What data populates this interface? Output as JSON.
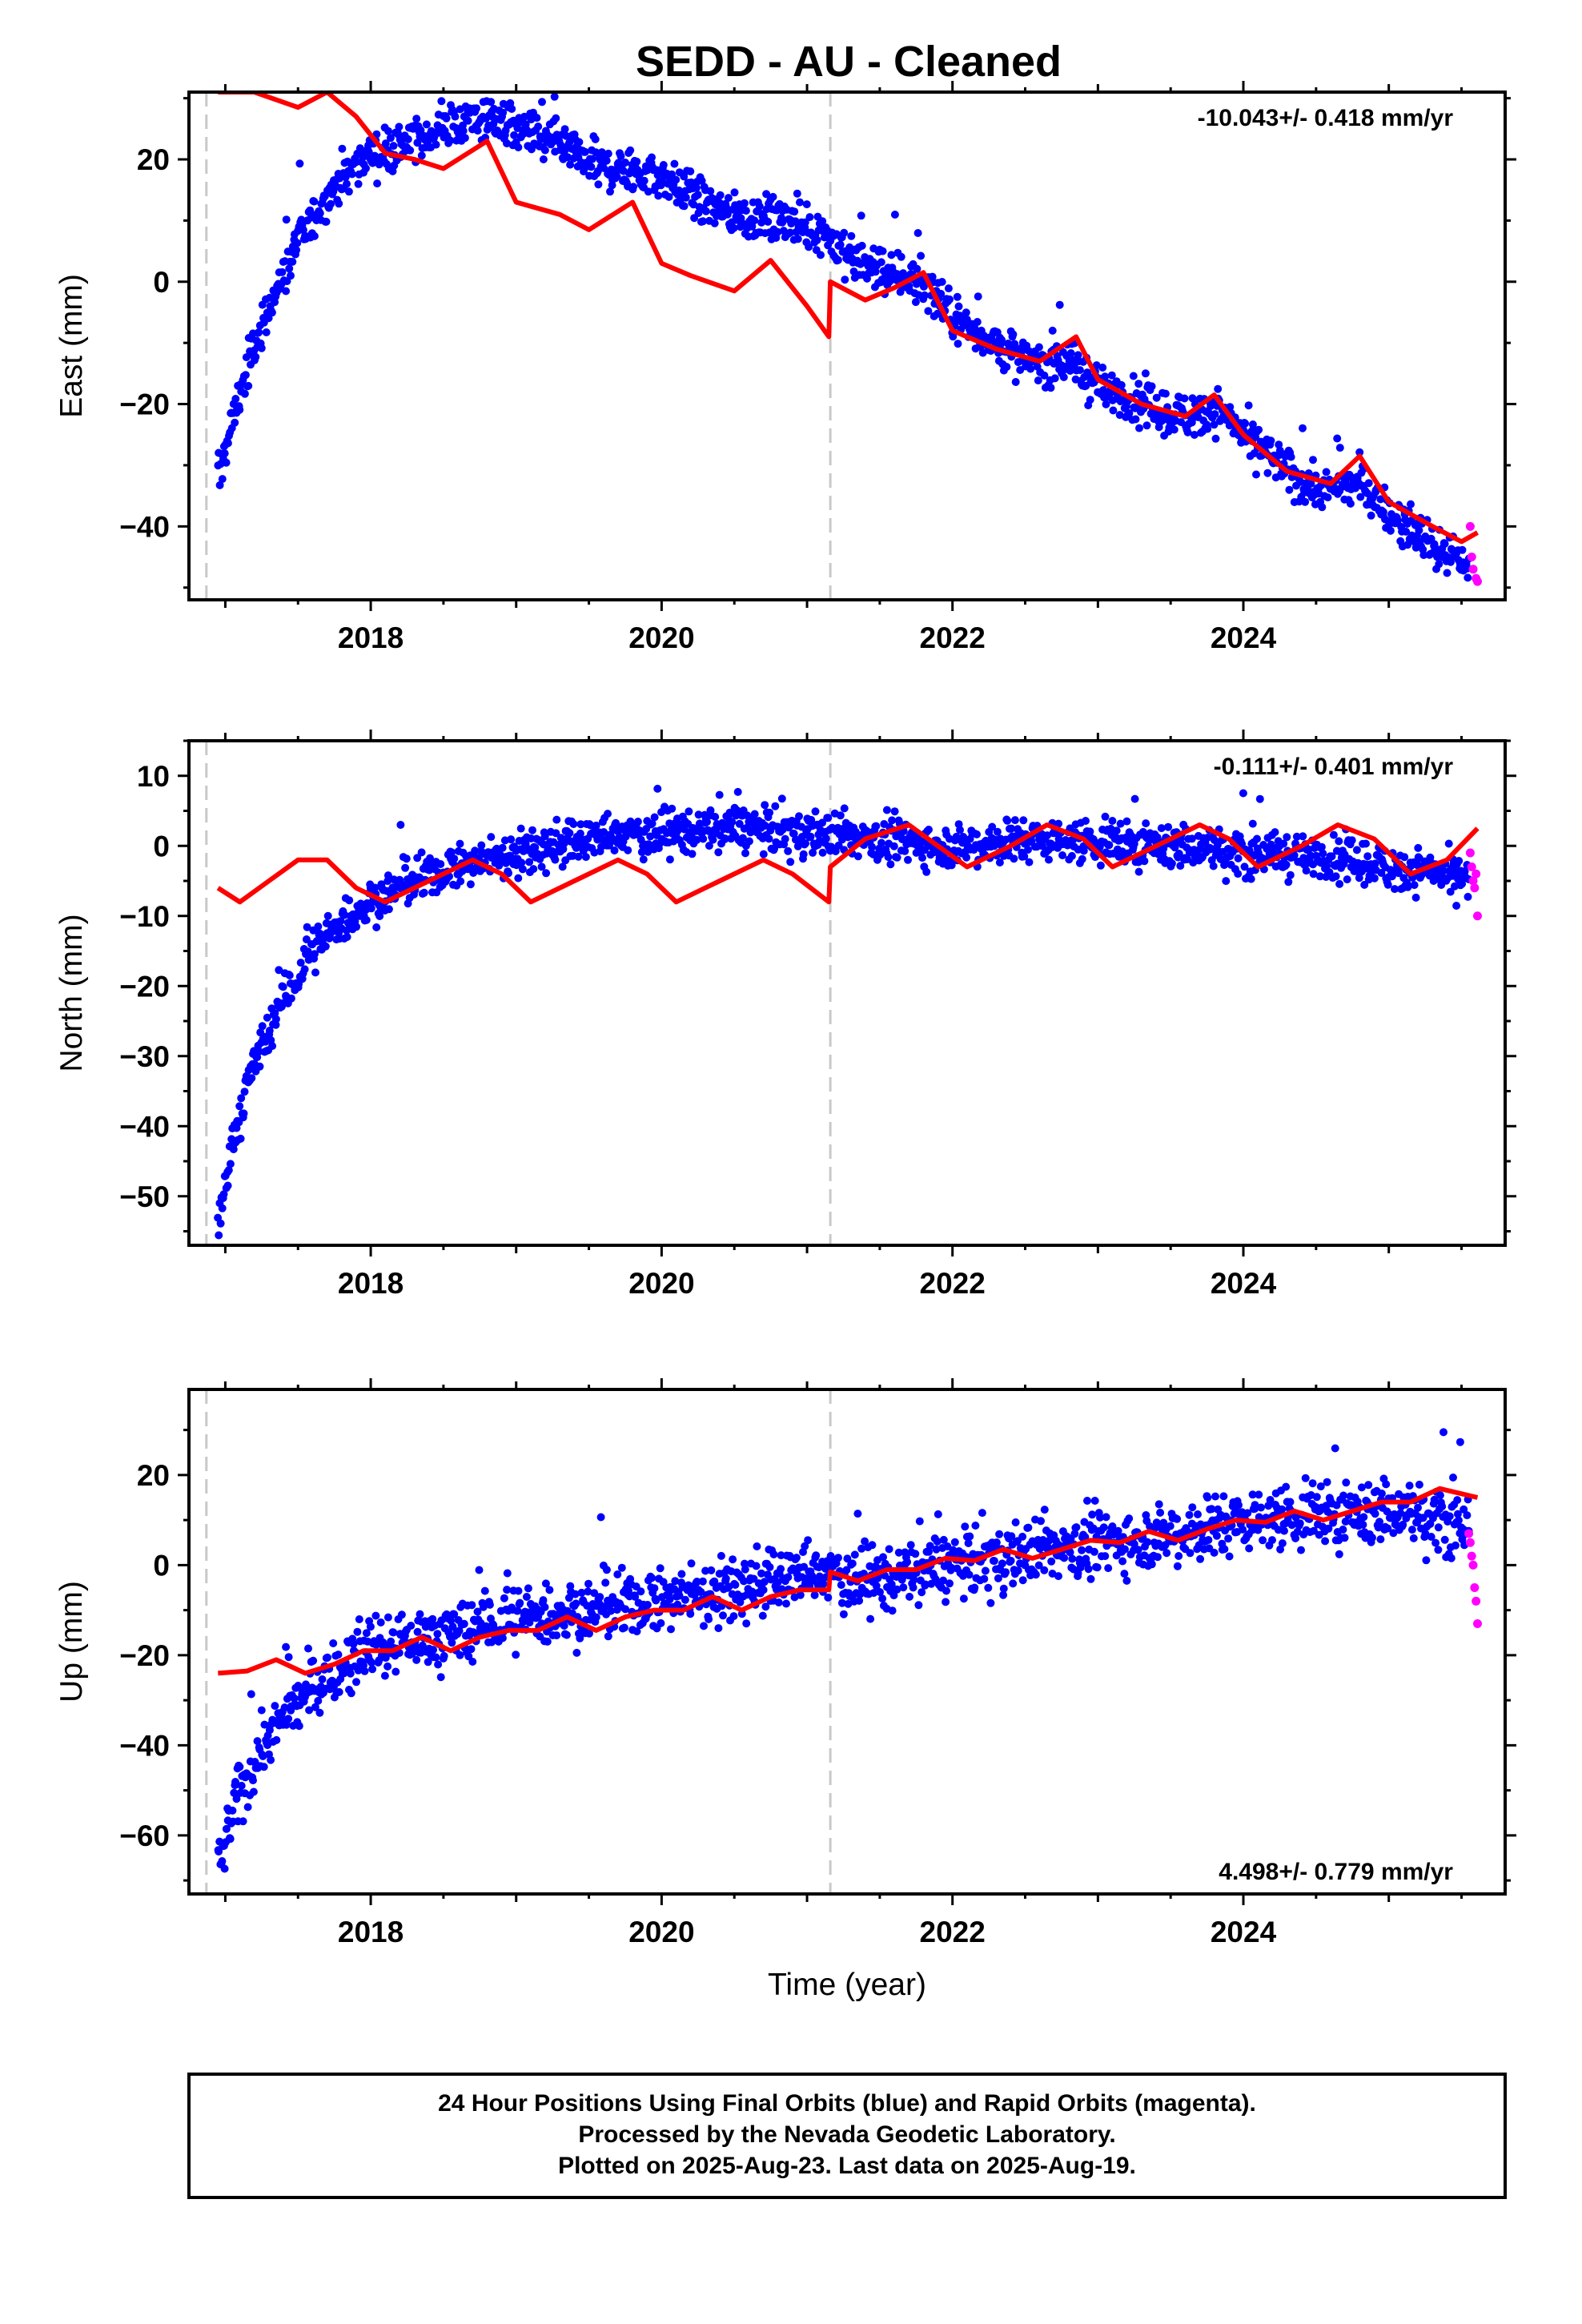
{
  "title": "SEDD  - AU - Cleaned",
  "colors": {
    "final": "#0000ff",
    "rapid": "#ff00ff",
    "model": "#ff0000",
    "step_line": "#c8c8c8",
    "frame": "#000000"
  },
  "caption": {
    "line1": "24 Hour Positions Using Final Orbits (blue) and Rapid Orbits (magenta).",
    "line2": "Processed by the Nevada Geodetic Laboratory.",
    "line3": "Plotted on 2025-Aug-23. Last data on 2025-Aug-19."
  },
  "chart_data": [
    {
      "type": "scatter",
      "component": "east",
      "ylabel": "East (mm)",
      "xlabel": "",
      "rate": "-10.043+/- 0.418 mm/yr",
      "rate_position": "top-right",
      "xlim": [
        2016.75,
        2025.8
      ],
      "ylim": [
        -52,
        31
      ],
      "xticks": [
        2018,
        2020,
        2022,
        2024
      ],
      "yticks": [
        -40,
        -20,
        0,
        20
      ],
      "step_lines": [
        2016.87,
        2021.16
      ],
      "trend": {
        "x": [
          2016.95,
          2017.1,
          2017.3,
          2017.5,
          2017.7,
          2018.0,
          2018.3,
          2018.5,
          2018.8,
          2019.0,
          2019.3,
          2019.5,
          2019.8,
          2020.0,
          2020.3,
          2020.5,
          2020.8,
          2021.0,
          2021.15,
          2021.17,
          2021.4,
          2021.6,
          2021.8,
          2022.0,
          2022.3,
          2022.5,
          2022.8,
          2023.0,
          2023.3,
          2023.5,
          2023.8,
          2024.0,
          2024.3,
          2024.5,
          2024.8,
          2025.0,
          2025.3,
          2025.61
        ],
        "y": [
          -32,
          -18,
          -4,
          6,
          14,
          21,
          23,
          25,
          27,
          25,
          22,
          19,
          18,
          17,
          13,
          11,
          10,
          9,
          8,
          6,
          3,
          1,
          0,
          -6,
          -10,
          -13,
          -13,
          -17,
          -20,
          -22,
          -21,
          -25,
          -31,
          -34,
          -33,
          -38,
          -43,
          -47
        ]
      },
      "model": {
        "x": [
          2016.95,
          2017.2,
          2017.5,
          2017.7,
          2017.9,
          2018.1,
          2018.3,
          2018.5,
          2018.8,
          2019.0,
          2019.3,
          2019.5,
          2019.8,
          2020.0,
          2020.2,
          2020.5,
          2020.75,
          2021.0,
          2021.15,
          2021.16,
          2021.4,
          2021.6,
          2021.8,
          2022.0,
          2022.3,
          2022.6,
          2022.85,
          2023.0,
          2023.3,
          2023.6,
          2023.8,
          2024.0,
          2024.3,
          2024.6,
          2024.8,
          2025.0,
          2025.3,
          2025.5,
          2025.61
        ],
        "y": [
          31,
          31,
          28.5,
          31,
          27,
          21,
          20,
          18.5,
          23,
          13,
          11,
          8.5,
          13,
          3,
          1,
          -1.5,
          3.5,
          -4,
          -9,
          0,
          -3,
          -1,
          1.5,
          -8,
          -11,
          -13,
          -9,
          -16,
          -20,
          -22,
          -18.5,
          -25,
          -31,
          -33,
          -28.5,
          -36,
          -40,
          -42.5,
          -41
        ]
      },
      "rapid": {
        "x": [
          2025.56,
          2025.57,
          2025.58,
          2025.6,
          2025.61
        ],
        "y": [
          -40,
          -45,
          -47,
          -48.5,
          -49
        ]
      }
    },
    {
      "type": "scatter",
      "component": "north",
      "ylabel": "North (mm)",
      "xlabel": "",
      "rate": "-0.111+/- 0.401 mm/yr",
      "rate_position": "top-right",
      "xlim": [
        2016.75,
        2025.8
      ],
      "ylim": [
        -57,
        15
      ],
      "xticks": [
        2018,
        2020,
        2022,
        2024
      ],
      "yticks": [
        -50,
        -40,
        -30,
        -20,
        -10,
        0,
        10
      ],
      "step_lines": [
        2016.87,
        2021.16
      ],
      "trend": {
        "x": [
          2016.95,
          2017.05,
          2017.2,
          2017.4,
          2017.6,
          2017.8,
          2018.0,
          2018.3,
          2018.6,
          2019.0,
          2019.5,
          2020.0,
          2020.5,
          2021.0,
          2021.5,
          2022.0,
          2022.5,
          2023.0,
          2023.5,
          2024.0,
          2024.5,
          2025.0,
          2025.61
        ],
        "y": [
          -55,
          -42,
          -31,
          -22,
          -15,
          -11,
          -8,
          -5,
          -3,
          -1,
          1,
          2,
          2.5,
          2,
          1,
          0,
          1,
          0.5,
          0,
          -1,
          -1.5,
          -3,
          -5
        ]
      },
      "model": {
        "x": [
          2016.95,
          2017.1,
          2017.3,
          2017.5,
          2017.7,
          2017.9,
          2018.1,
          2018.4,
          2018.7,
          2018.9,
          2019.1,
          2019.4,
          2019.7,
          2019.9,
          2020.1,
          2020.4,
          2020.7,
          2020.9,
          2021.15,
          2021.16,
          2021.4,
          2021.7,
          2021.9,
          2022.1,
          2022.4,
          2022.65,
          2022.9,
          2023.1,
          2023.4,
          2023.7,
          2023.9,
          2024.1,
          2024.4,
          2024.65,
          2024.9,
          2025.15,
          2025.4,
          2025.61
        ],
        "y": [
          -6,
          -8,
          -5,
          -2,
          -2,
          -6,
          -8,
          -5,
          -2,
          -4,
          -8,
          -5,
          -2,
          -4,
          -8,
          -5,
          -2,
          -4,
          -8,
          -3,
          1,
          3,
          0,
          -3,
          0,
          3,
          1,
          -3,
          0,
          3,
          1,
          -3,
          0,
          3,
          1,
          -4,
          -2,
          2.5
        ]
      },
      "rapid": {
        "x": [
          2025.56,
          2025.57,
          2025.58,
          2025.59,
          2025.6,
          2025.61
        ],
        "y": [
          -1,
          -3,
          -5,
          -6,
          -4,
          -10
        ]
      }
    },
    {
      "type": "scatter",
      "component": "up",
      "ylabel": "Up (mm)",
      "xlabel": "Time (year)",
      "rate": "4.498+/- 0.779 mm/yr",
      "rate_position": "bottom-right",
      "xlim": [
        2016.75,
        2025.8
      ],
      "ylim": [
        -73,
        39
      ],
      "xticks": [
        2018,
        2020,
        2022,
        2024
      ],
      "yticks": [
        -60,
        -40,
        -20,
        0,
        20
      ],
      "step_lines": [
        2016.87,
        2021.16
      ],
      "trend": {
        "x": [
          2016.95,
          2017.1,
          2017.3,
          2017.5,
          2017.8,
          2018.0,
          2018.5,
          2019.0,
          2019.5,
          2020.0,
          2020.5,
          2021.0,
          2021.5,
          2022.0,
          2022.5,
          2023.0,
          2023.5,
          2024.0,
          2024.5,
          2025.0,
          2025.61
        ],
        "y": [
          -68,
          -50,
          -38,
          -30,
          -23,
          -18,
          -16,
          -12,
          -10,
          -8,
          -5,
          -2,
          -3,
          0,
          3,
          5,
          7,
          10,
          11,
          12,
          9
        ]
      },
      "model": {
        "x": [
          2016.95,
          2017.15,
          2017.35,
          2017.55,
          2017.75,
          2017.95,
          2018.15,
          2018.35,
          2018.55,
          2018.75,
          2018.95,
          2019.15,
          2019.35,
          2019.55,
          2019.75,
          2019.95,
          2020.15,
          2020.35,
          2020.55,
          2020.75,
          2020.95,
          2021.15,
          2021.16,
          2021.35,
          2021.55,
          2021.75,
          2021.95,
          2022.15,
          2022.35,
          2022.55,
          2022.75,
          2022.95,
          2023.15,
          2023.35,
          2023.55,
          2023.75,
          2023.95,
          2024.15,
          2024.35,
          2024.55,
          2024.75,
          2024.95,
          2025.15,
          2025.35,
          2025.61
        ],
        "y": [
          -24,
          -23.5,
          -21,
          -24,
          -22,
          -19,
          -19,
          -16,
          -19,
          -16,
          -14.5,
          -14.5,
          -11.5,
          -14.5,
          -11.5,
          -10,
          -10,
          -7,
          -10,
          -7,
          -5.5,
          -5.5,
          -1.5,
          -3.5,
          -1,
          -1,
          1.5,
          1,
          3.5,
          1.5,
          3.5,
          5.5,
          5,
          7.5,
          5.5,
          8,
          10,
          9.5,
          12,
          10,
          12,
          14,
          14,
          17,
          15
        ]
      },
      "rapid": {
        "x": [
          2025.55,
          2025.56,
          2025.57,
          2025.58,
          2025.59,
          2025.6,
          2025.61
        ],
        "y": [
          7,
          5,
          2,
          0,
          -5,
          -8,
          -13
        ]
      }
    }
  ]
}
